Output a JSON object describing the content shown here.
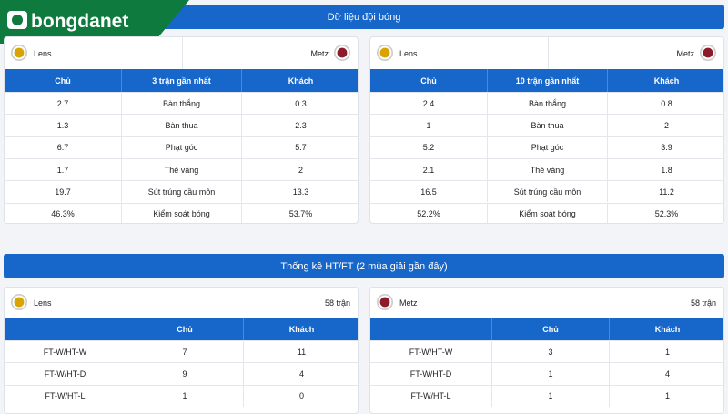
{
  "header": {
    "logo": "bongdanet",
    "title": "Dữ liệu đội bóng"
  },
  "team_data": [
    {
      "home": "Lens",
      "away": "Metz",
      "columns": [
        "Chủ",
        "3 trận gần nhất",
        "Khách"
      ],
      "rows": [
        [
          "2.7",
          "Bàn thắng",
          "0.3"
        ],
        [
          "1.3",
          "Bàn thua",
          "2.3"
        ],
        [
          "6.7",
          "Phạt góc",
          "5.7"
        ],
        [
          "1.7",
          "Thẻ vàng",
          "2"
        ],
        [
          "19.7",
          "Sút trúng cầu môn",
          "13.3"
        ],
        [
          "46.3%",
          "Kiểm soát bóng",
          "53.7%"
        ]
      ]
    },
    {
      "home": "Lens",
      "away": "Metz",
      "columns": [
        "Chủ",
        "10 trận gần nhất",
        "Khách"
      ],
      "rows": [
        [
          "2.4",
          "Bàn thắng",
          "0.8"
        ],
        [
          "1",
          "Bàn thua",
          "2"
        ],
        [
          "5.2",
          "Phạt góc",
          "3.9"
        ],
        [
          "2.1",
          "Thẻ vàng",
          "1.8"
        ],
        [
          "16.5",
          "Sút trúng cầu môn",
          "11.2"
        ],
        [
          "52.2%",
          "Kiểm soát bóng",
          "52.3%"
        ]
      ]
    }
  ],
  "htft": {
    "title": "Thống kê HT/FT (2 mùa giải gần đây)",
    "panels": [
      {
        "team": "Lens",
        "matches": "58 trận",
        "columns": [
          "Chủ",
          "Khách"
        ],
        "rows": [
          [
            "FT-W/HT-W",
            "7",
            "11"
          ],
          [
            "FT-W/HT-D",
            "9",
            "4"
          ],
          [
            "FT-W/HT-L",
            "1",
            "0"
          ]
        ]
      },
      {
        "team": "Metz",
        "matches": "58 trận",
        "columns": [
          "Chủ",
          "Khách"
        ],
        "rows": [
          [
            "FT-W/HT-W",
            "3",
            "1"
          ],
          [
            "FT-W/HT-D",
            "1",
            "4"
          ],
          [
            "FT-W/HT-L",
            "1",
            "1"
          ]
        ]
      }
    ]
  }
}
